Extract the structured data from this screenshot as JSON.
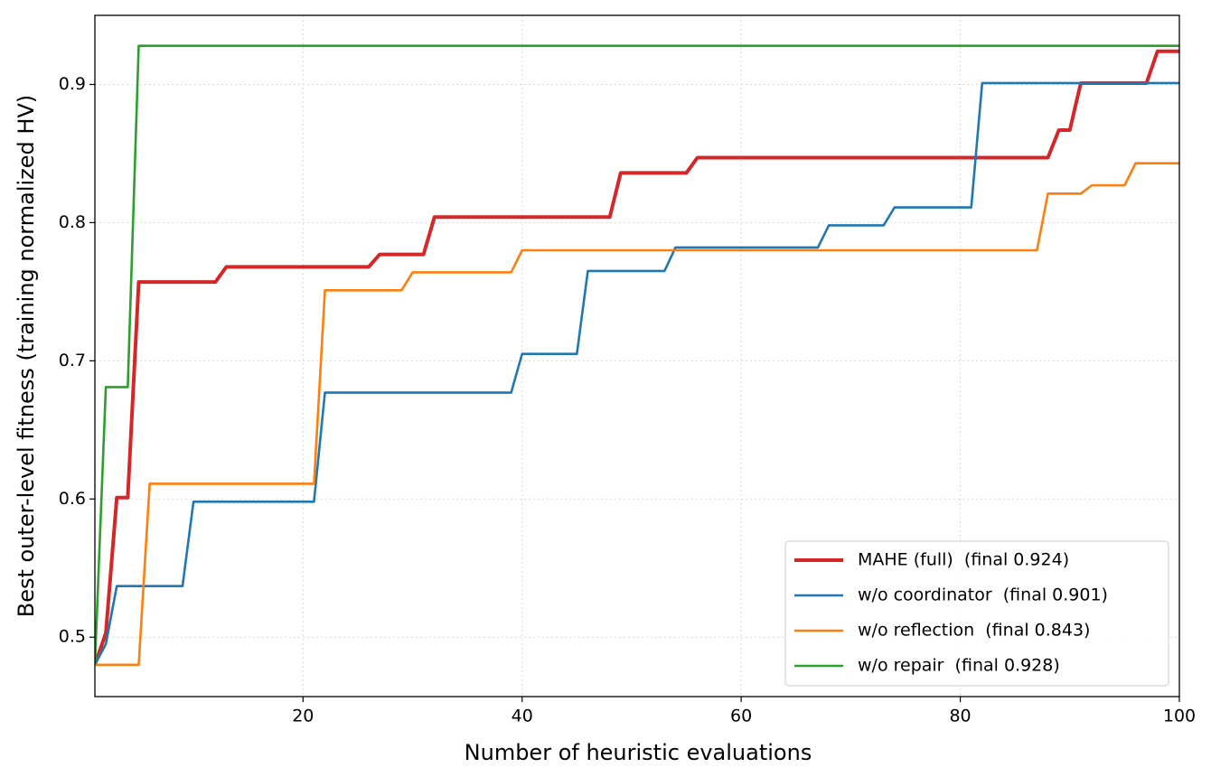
{
  "chart_data": {
    "type": "line",
    "xlabel": "Number of heuristic evaluations",
    "ylabel": "Best outer-level fitness (training normalized HV)",
    "xlim": [
      1,
      100
    ],
    "xticks": [
      20,
      40,
      60,
      80,
      100
    ],
    "ylim": [
      0.457,
      0.95
    ],
    "yticks": [
      0.5,
      0.6,
      0.7,
      0.8,
      0.9
    ],
    "grid": true,
    "legend": "lower right",
    "series": [
      {
        "name": "MAHE (full)  (final 0.924)",
        "color": "#d62728",
        "x": [
          1,
          2,
          3,
          4,
          5,
          12,
          13,
          26,
          27,
          31,
          32,
          48,
          49,
          55,
          56,
          88,
          89,
          90,
          91,
          97,
          98,
          100
        ],
        "values": [
          0.48,
          0.503,
          0.601,
          0.601,
          0.757,
          0.757,
          0.768,
          0.768,
          0.777,
          0.777,
          0.804,
          0.804,
          0.836,
          0.836,
          0.847,
          0.847,
          0.867,
          0.867,
          0.901,
          0.901,
          0.924,
          0.924
        ]
      },
      {
        "name": "w/o coordinator  (final 0.901)",
        "color": "#1f77b4",
        "x": [
          1,
          2,
          3,
          9,
          10,
          21,
          22,
          39,
          40,
          45,
          46,
          53,
          54,
          67,
          68,
          73,
          74,
          81,
          82,
          100
        ],
        "values": [
          0.48,
          0.495,
          0.537,
          0.537,
          0.598,
          0.598,
          0.677,
          0.677,
          0.705,
          0.705,
          0.765,
          0.765,
          0.782,
          0.782,
          0.798,
          0.798,
          0.811,
          0.811,
          0.901,
          0.901
        ]
      },
      {
        "name": "w/o reflection  (final 0.843)",
        "color": "#ff7f0e",
        "x": [
          1,
          5,
          6,
          21,
          22,
          29,
          30,
          39,
          40,
          87,
          88,
          91,
          92,
          95,
          96,
          100
        ],
        "values": [
          0.48,
          0.48,
          0.611,
          0.611,
          0.751,
          0.751,
          0.764,
          0.764,
          0.78,
          0.78,
          0.821,
          0.821,
          0.827,
          0.827,
          0.843,
          0.843
        ]
      },
      {
        "name": "w/o repair  (final 0.928)",
        "color": "#2ca02c",
        "x": [
          1,
          2,
          4,
          5,
          100
        ],
        "values": [
          0.48,
          0.681,
          0.681,
          0.928,
          0.928
        ]
      }
    ]
  }
}
